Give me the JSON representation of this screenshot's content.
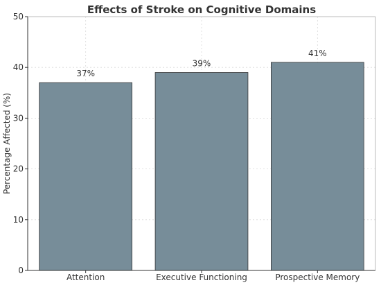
{
  "chart_data": {
    "type": "bar",
    "title": "Effects of Stroke on Cognitive Domains",
    "xlabel": "",
    "ylabel": "Percentage Affected (%)",
    "categories": [
      "Attention",
      "Executive Functioning",
      "Prospective Memory"
    ],
    "values": [
      37,
      39,
      41
    ],
    "data_labels": [
      "37%",
      "39%",
      "41%"
    ],
    "ylim": [
      0,
      50
    ],
    "yticks": [
      0,
      10,
      20,
      30,
      40,
      50
    ],
    "grid": true,
    "bar_color": "#778d99"
  }
}
